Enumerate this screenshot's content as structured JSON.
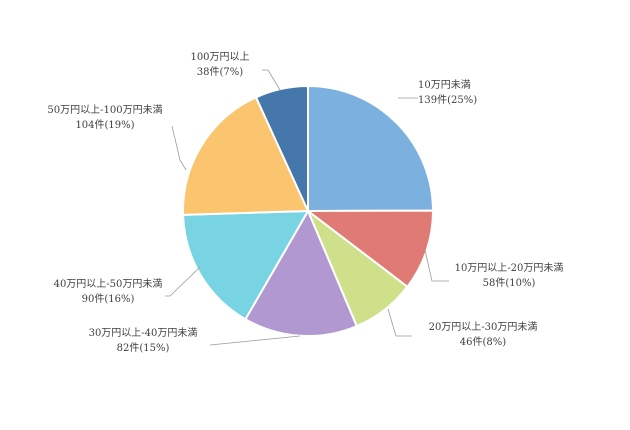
{
  "chart_data": {
    "type": "pie",
    "start_angle_deg": 0,
    "direction": "clockwise",
    "title": "",
    "slices": [
      {
        "category": "10万円未満",
        "value_text": "139件(25%)",
        "count": 139,
        "percent": 25,
        "color": "#7cb0df"
      },
      {
        "category": "10万円以上-20万円未満",
        "value_text": "58件(10%)",
        "count": 58,
        "percent": 10,
        "color": "#e07a75"
      },
      {
        "category": "20万円以上-30万円未満",
        "value_text": "46件(8%)",
        "count": 46,
        "percent": 8,
        "color": "#cfe08b"
      },
      {
        "category": "30万円以上-40万円未満",
        "value_text": "82件(15%)",
        "count": 82,
        "percent": 15,
        "color": "#b198d1"
      },
      {
        "category": "40万円以上-50万円未満",
        "value_text": "90件(16%)",
        "count": 90,
        "percent": 16,
        "color": "#78d3e3"
      },
      {
        "category": "50万円以上-100万円未満",
        "value_text": "104件(19%)",
        "count": 104,
        "percent": 19,
        "color": "#fbc56f"
      },
      {
        "category": "100万円以上",
        "value_text": "38件(7%)",
        "count": 38,
        "percent": 7,
        "color": "#4677ab"
      }
    ]
  }
}
